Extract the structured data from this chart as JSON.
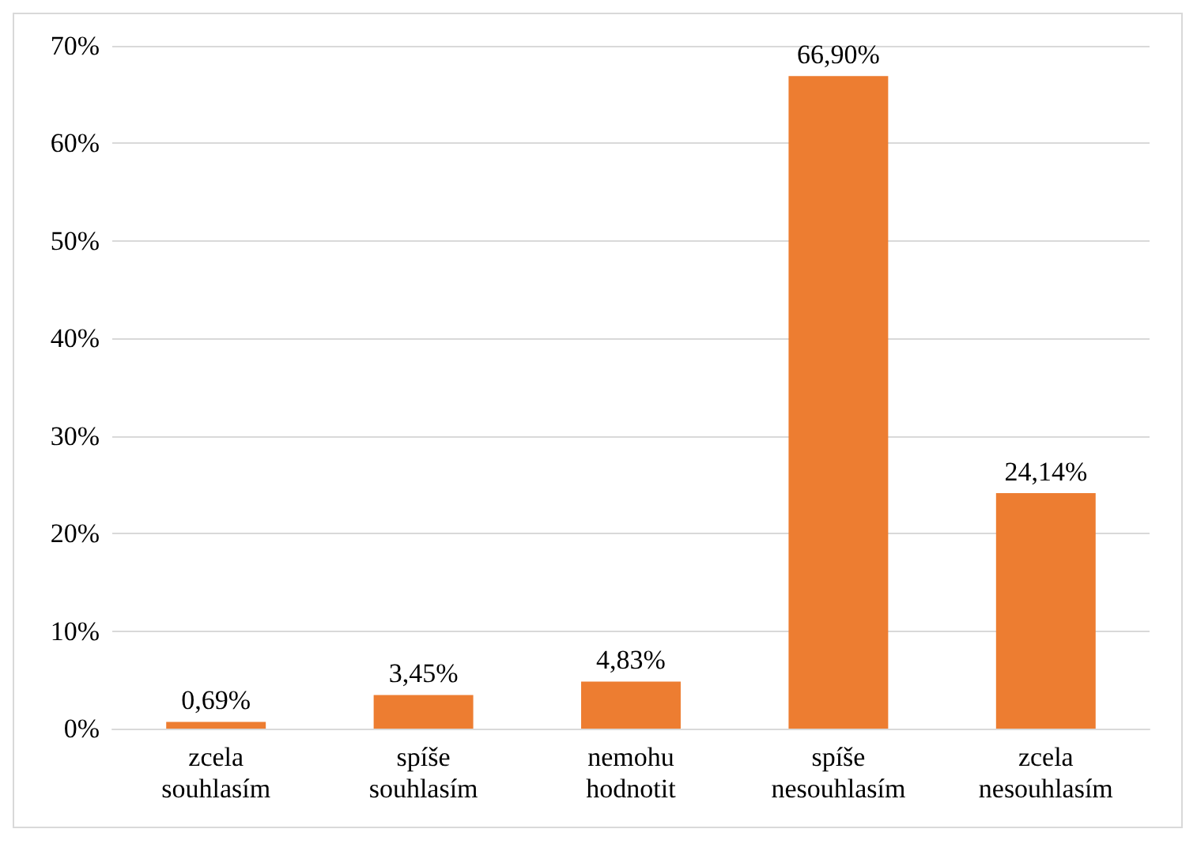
{
  "chart_data": {
    "type": "bar",
    "categories": [
      "zcela souhlasím",
      "spíše souhlasím",
      "nemohu hodnotit",
      "spíše nesouhlasím",
      "zcela nesouhlasím"
    ],
    "values": [
      0.69,
      3.45,
      4.83,
      66.9,
      24.14
    ],
    "value_labels": [
      "0,69%",
      "3,45%",
      "4,83%",
      "66,90%",
      "24,14%"
    ],
    "color": "#ed7d31",
    "ylim": [
      0,
      70
    ],
    "yticks": [
      {
        "value": 0,
        "label": "0%"
      },
      {
        "value": 10,
        "label": "10%"
      },
      {
        "value": 20,
        "label": "20%"
      },
      {
        "value": 30,
        "label": "30%"
      },
      {
        "value": 40,
        "label": "40%"
      },
      {
        "value": 50,
        "label": "50%"
      },
      {
        "value": 60,
        "label": "60%"
      },
      {
        "value": 70,
        "label": "70%"
      }
    ],
    "grid": "y"
  }
}
